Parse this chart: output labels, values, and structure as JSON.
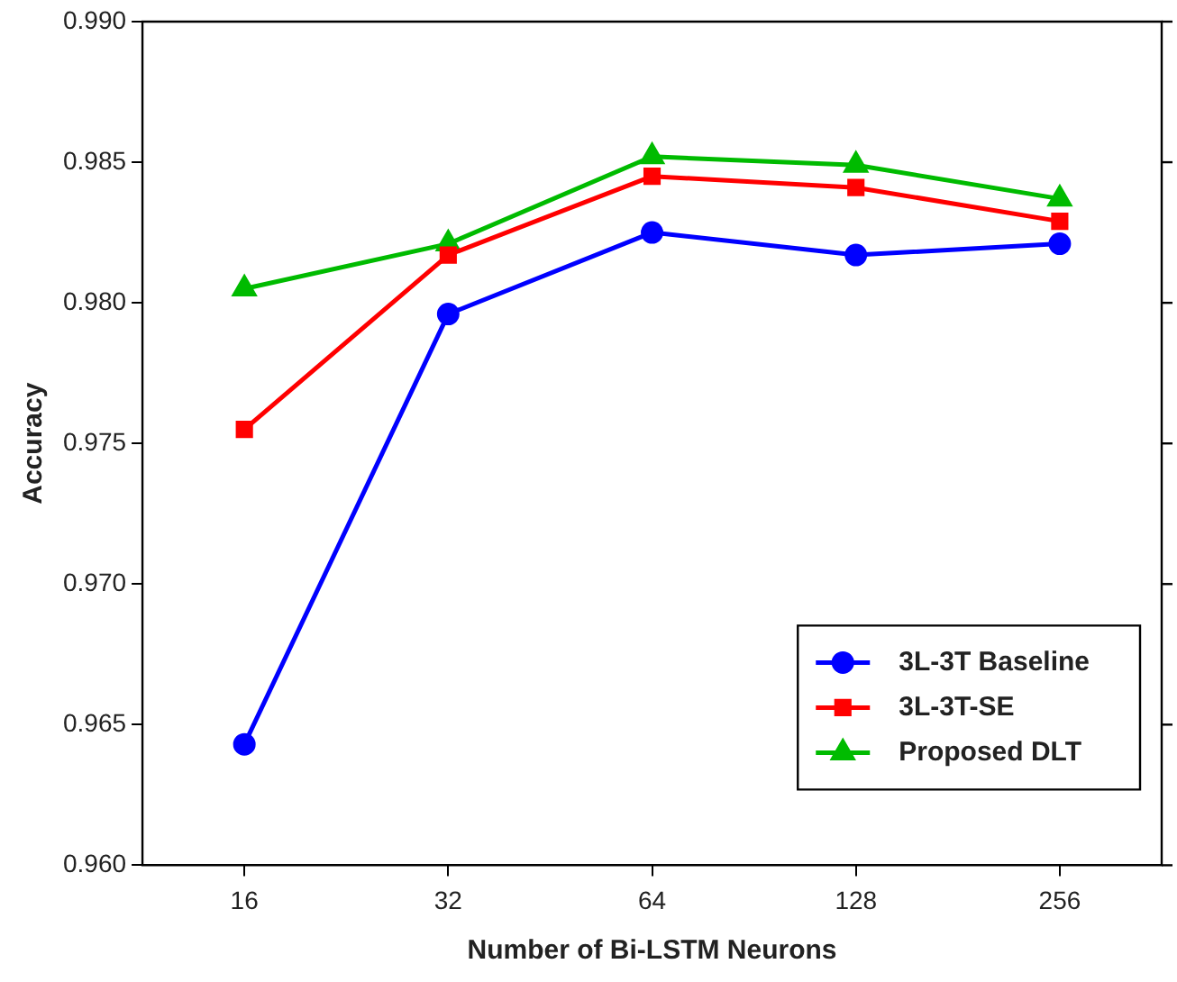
{
  "chart_data": {
    "type": "line",
    "xlabel": "Number of Bi-LSTM Neurons",
    "ylabel": "Accuracy",
    "categories": [
      "16",
      "32",
      "64",
      "128",
      "256"
    ],
    "series": [
      {
        "name": "3L-3T Baseline",
        "color": "#0000ff",
        "marker": "circle",
        "values": [
          0.9643,
          0.9796,
          0.9825,
          0.9817,
          0.9821
        ]
      },
      {
        "name": "3L-3T-SE",
        "color": "#ff0000",
        "marker": "square",
        "values": [
          0.9755,
          0.9817,
          0.9845,
          0.9841,
          0.9829
        ]
      },
      {
        "name": "Proposed DLT",
        "color": "#00bb00",
        "marker": "triangle",
        "values": [
          0.9805,
          0.9821,
          0.9852,
          0.9849,
          0.9837
        ]
      }
    ],
    "ylim": [
      0.96,
      0.99
    ],
    "yticks": [
      {
        "value": 0.96,
        "label": "0.960"
      },
      {
        "value": 0.965,
        "label": "0.965"
      },
      {
        "value": 0.97,
        "label": "0.970"
      },
      {
        "value": 0.975,
        "label": "0.975"
      },
      {
        "value": 0.98,
        "label": "0.980"
      },
      {
        "value": 0.985,
        "label": "0.985"
      },
      {
        "value": 0.99,
        "label": "0.990"
      }
    ],
    "grid": false,
    "legend": "bottom right",
    "line_style": "solid"
  }
}
